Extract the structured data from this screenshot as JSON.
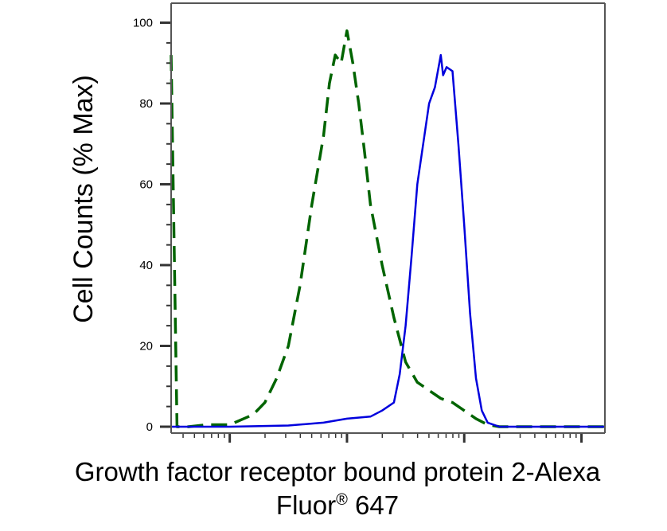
{
  "chart_data": {
    "type": "line",
    "xlabel_line1": "Growth factor receptor bound protein 2-Alexa",
    "xlabel_line2_main": "Fluor",
    "xlabel_line2_sup": "®",
    "xlabel_line2_rest": " 647",
    "ylabel": "Cell Counts (% Max)",
    "ylim": [
      0,
      105
    ],
    "yticks": [
      "0",
      "20",
      "40",
      "60",
      "80",
      "100"
    ],
    "xscale": "log",
    "xlim_log10": [
      -0.5,
      3.2
    ],
    "grid": false,
    "series": [
      {
        "color": "#006400",
        "style": "dashed",
        "x_log10": [
          -0.5,
          -0.45,
          -0.35,
          -0.2,
          0.0,
          0.2,
          0.3,
          0.4,
          0.5,
          0.6,
          0.7,
          0.8,
          0.85,
          0.9,
          0.95,
          1.0,
          1.05,
          1.1,
          1.15,
          1.2,
          1.3,
          1.4,
          1.5,
          1.6,
          1.8,
          1.9,
          2.0,
          2.1,
          2.2,
          2.3,
          2.4,
          2.6,
          2.8,
          3.0,
          3.2
        ],
        "y": [
          92,
          0,
          0,
          0.5,
          0.5,
          3,
          6,
          12,
          20,
          35,
          55,
          72,
          85,
          92,
          90,
          98,
          90,
          80,
          68,
          55,
          40,
          27,
          16,
          11,
          7,
          6,
          4,
          2,
          0.5,
          0,
          0,
          0,
          0,
          0,
          0
        ]
      },
      {
        "color": "#0000dd",
        "style": "solid",
        "x_log10": [
          -0.5,
          0.0,
          0.5,
          0.8,
          0.9,
          1.0,
          1.2,
          1.3,
          1.4,
          1.45,
          1.5,
          1.55,
          1.6,
          1.7,
          1.75,
          1.8,
          1.82,
          1.85,
          1.9,
          1.95,
          2.0,
          2.05,
          2.1,
          2.15,
          2.2,
          2.3,
          2.4,
          2.6,
          2.8,
          3.0,
          3.2
        ],
        "y": [
          0,
          0,
          0.3,
          1,
          1.5,
          2,
          2.5,
          4,
          6,
          13,
          25,
          42,
          60,
          80,
          84,
          92,
          87,
          89,
          88,
          70,
          50,
          28,
          12,
          4,
          1,
          0,
          0,
          0,
          0,
          0,
          0
        ]
      }
    ]
  }
}
